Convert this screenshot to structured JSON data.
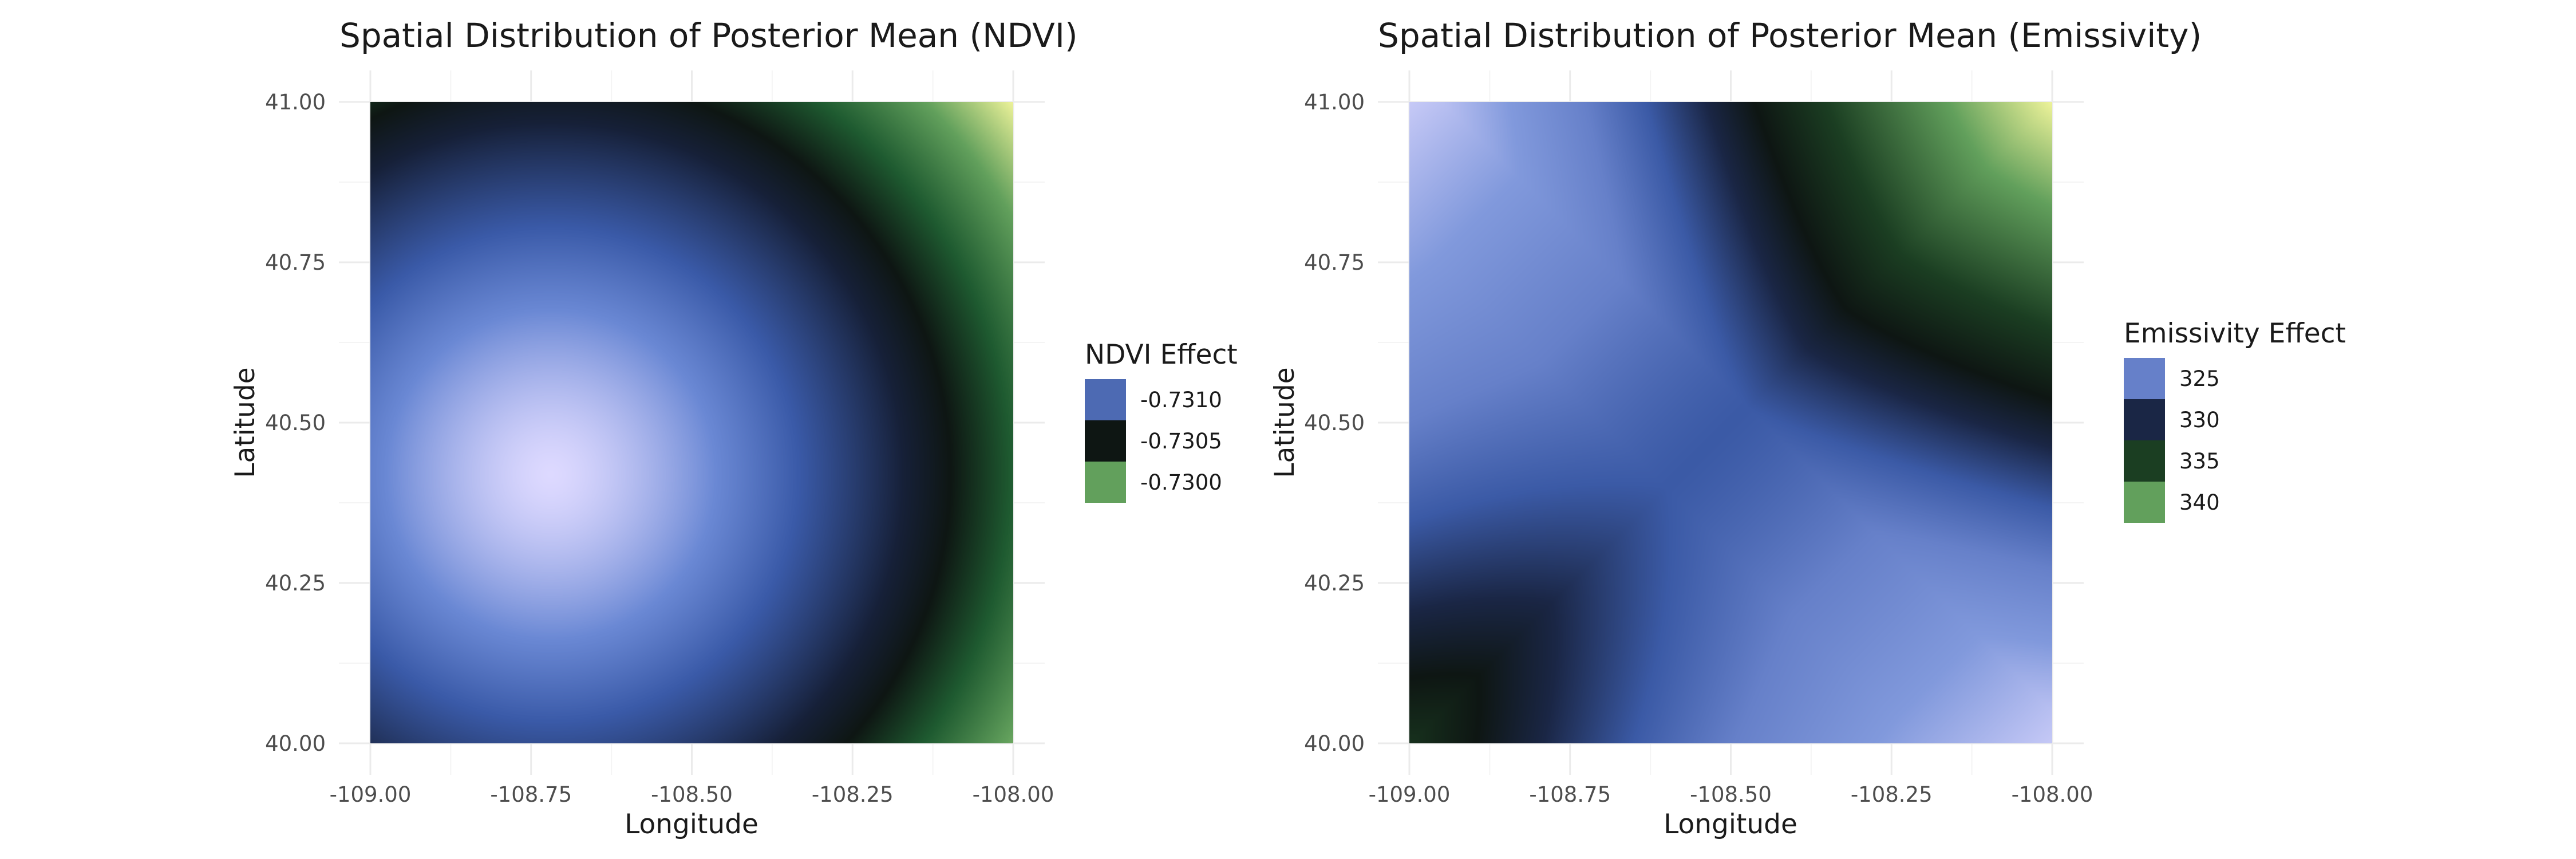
{
  "chart_data": [
    {
      "type": "heatmap",
      "title": "Spatial Distribution of Posterior Mean (NDVI)",
      "xlabel": "Longitude",
      "ylabel": "Latitude",
      "xlim": [
        -109.0,
        -108.0
      ],
      "ylim": [
        40.0,
        41.0
      ],
      "x_ticks": [
        "-109.00",
        "-108.75",
        "-108.50",
        "-108.25",
        "-108.00"
      ],
      "x_tick_values": [
        -109.0,
        -108.75,
        -108.5,
        -108.25,
        -108.0
      ],
      "y_ticks": [
        "40.00",
        "40.25",
        "40.50",
        "40.75",
        "41.00"
      ],
      "y_tick_values": [
        40.0,
        40.25,
        40.5,
        40.75,
        41.0
      ],
      "grid": true,
      "legend": {
        "title": "NDVI Effect",
        "placement": "right",
        "entries": [
          {
            "label": "-0.7310",
            "value": -0.731,
            "color": "#4d6ab3"
          },
          {
            "label": "-0.7305",
            "value": -0.7305,
            "color": "#0e1613"
          },
          {
            "label": "-0.7300",
            "value": -0.73,
            "color": "#62a05c"
          }
        ]
      },
      "colorscale": [
        {
          "value": -0.73135,
          "color": "#ddd9ff"
        },
        {
          "value": -0.7311,
          "color": "#6a88d4"
        },
        {
          "value": -0.7309,
          "color": "#3a5aa8"
        },
        {
          "value": -0.7306,
          "color": "#162038"
        },
        {
          "value": -0.73045,
          "color": "#0e1613"
        },
        {
          "value": -0.73025,
          "color": "#1e5a30"
        },
        {
          "value": -0.73,
          "color": "#62a05c"
        },
        {
          "value": -0.72975,
          "color": "#eef39a"
        }
      ],
      "surface": {
        "model": "radial",
        "center": [
          -108.72,
          40.42
        ],
        "min_value": -0.73135,
        "max_value": -0.72975
      },
      "colors": {
        "high": "#eef39a",
        "low": "#ddd9ff"
      }
    },
    {
      "type": "heatmap",
      "title": "Spatial Distribution of Posterior Mean (Emissivity)",
      "xlabel": "Longitude",
      "ylabel": "Latitude",
      "xlim": [
        -109.0,
        -108.0
      ],
      "ylim": [
        40.0,
        41.0
      ],
      "x_ticks": [
        "-109.00",
        "-108.75",
        "-108.50",
        "-108.25",
        "-108.00"
      ],
      "x_tick_values": [
        -109.0,
        -108.75,
        -108.5,
        -108.25,
        -108.0
      ],
      "y_ticks": [
        "40.00",
        "40.25",
        "40.50",
        "40.75",
        "41.00"
      ],
      "y_tick_values": [
        40.0,
        40.25,
        40.5,
        40.75,
        41.0
      ],
      "grid": true,
      "legend": {
        "title": "Emissivity Effect",
        "placement": "right",
        "entries": [
          {
            "label": "325",
            "value": 325,
            "color": "#6680c9"
          },
          {
            "label": "330",
            "value": 330,
            "color": "#1a2645"
          },
          {
            "label": "335",
            "value": 335,
            "color": "#1b3e22"
          },
          {
            "label": "340",
            "value": 340,
            "color": "#62a05c"
          }
        ]
      },
      "colorscale": [
        {
          "value": 318,
          "color": "#ddd9ff"
        },
        {
          "value": 322,
          "color": "#8199dc"
        },
        {
          "value": 325,
          "color": "#6680c9"
        },
        {
          "value": 327.5,
          "color": "#3b5aa6"
        },
        {
          "value": 330,
          "color": "#1a2645"
        },
        {
          "value": 332,
          "color": "#0e1613"
        },
        {
          "value": 335,
          "color": "#1b3e22"
        },
        {
          "value": 340,
          "color": "#62a05c"
        },
        {
          "value": 344,
          "color": "#eef39a"
        }
      ],
      "surface": {
        "model": "anti_diagonal",
        "min_value": 318,
        "max_value": 344
      },
      "colors": {
        "high": "#eef39a",
        "low": "#ddd9ff"
      }
    }
  ]
}
